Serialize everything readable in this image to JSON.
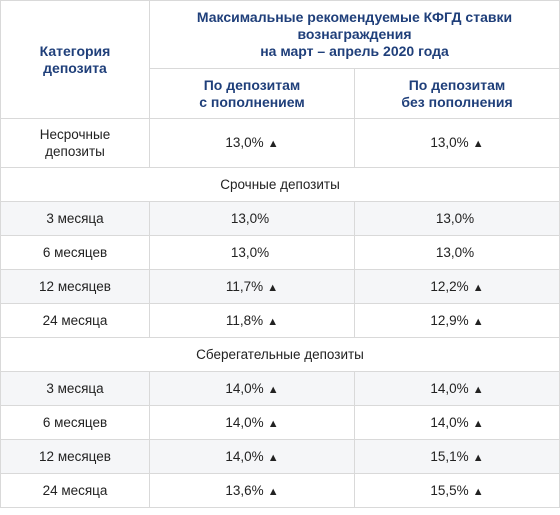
{
  "header": {
    "category": "Категория депозита",
    "category_line1": "Категория",
    "category_line2": "депозита",
    "title_line1": "Максимальные рекомендуемые КФГД ставки",
    "title_line2": "вознаграждения",
    "title_line3": "на март – апрель 2020 года",
    "col1_line1": "По депозитам",
    "col1_line2": "с пополнением",
    "col2_line1": "По депозитам",
    "col2_line2": "без пополнения"
  },
  "rows": {
    "nesrochnye": {
      "label_line1": "Несрочные",
      "label_line2": "депозиты",
      "v1": "13,0%",
      "v1_arrow": "▲",
      "v2": "13,0%",
      "v2_arrow": "▲"
    },
    "section1": "Срочные депозиты",
    "srochnye": [
      {
        "label": "3 месяца",
        "v1": "13,0%",
        "v1_arrow": "",
        "v2": "13,0%",
        "v2_arrow": ""
      },
      {
        "label": "6 месяцев",
        "v1": "13,0%",
        "v1_arrow": "",
        "v2": "13,0%",
        "v2_arrow": ""
      },
      {
        "label": "12 месяцев",
        "v1": "11,7%",
        "v1_arrow": "▲",
        "v2": "12,2%",
        "v2_arrow": "▲"
      },
      {
        "label": "24 месяца",
        "v1": "11,8%",
        "v1_arrow": "▲",
        "v2": "12,9%",
        "v2_arrow": "▲"
      }
    ],
    "section2": "Сберегательные депозиты",
    "sberegatelnye": [
      {
        "label": "3 месяца",
        "v1": "14,0%",
        "v1_arrow": "▲",
        "v2": "14,0%",
        "v2_arrow": "▲"
      },
      {
        "label": "6 месяцев",
        "v1": "14,0%",
        "v1_arrow": "▲",
        "v2": "14,0%",
        "v2_arrow": "▲"
      },
      {
        "label": "12 месяцев",
        "v1": "14,0%",
        "v1_arrow": "▲",
        "v2": "15,1%",
        "v2_arrow": "▲"
      },
      {
        "label": "24 месяца",
        "v1": "13,6%",
        "v1_arrow": "▲",
        "v2": "15,5%",
        "v2_arrow": "▲"
      }
    ]
  },
  "colors": {
    "header_text": "#1f3f7a",
    "border": "#d9d9d9",
    "alt_row": "#f5f6f8"
  }
}
